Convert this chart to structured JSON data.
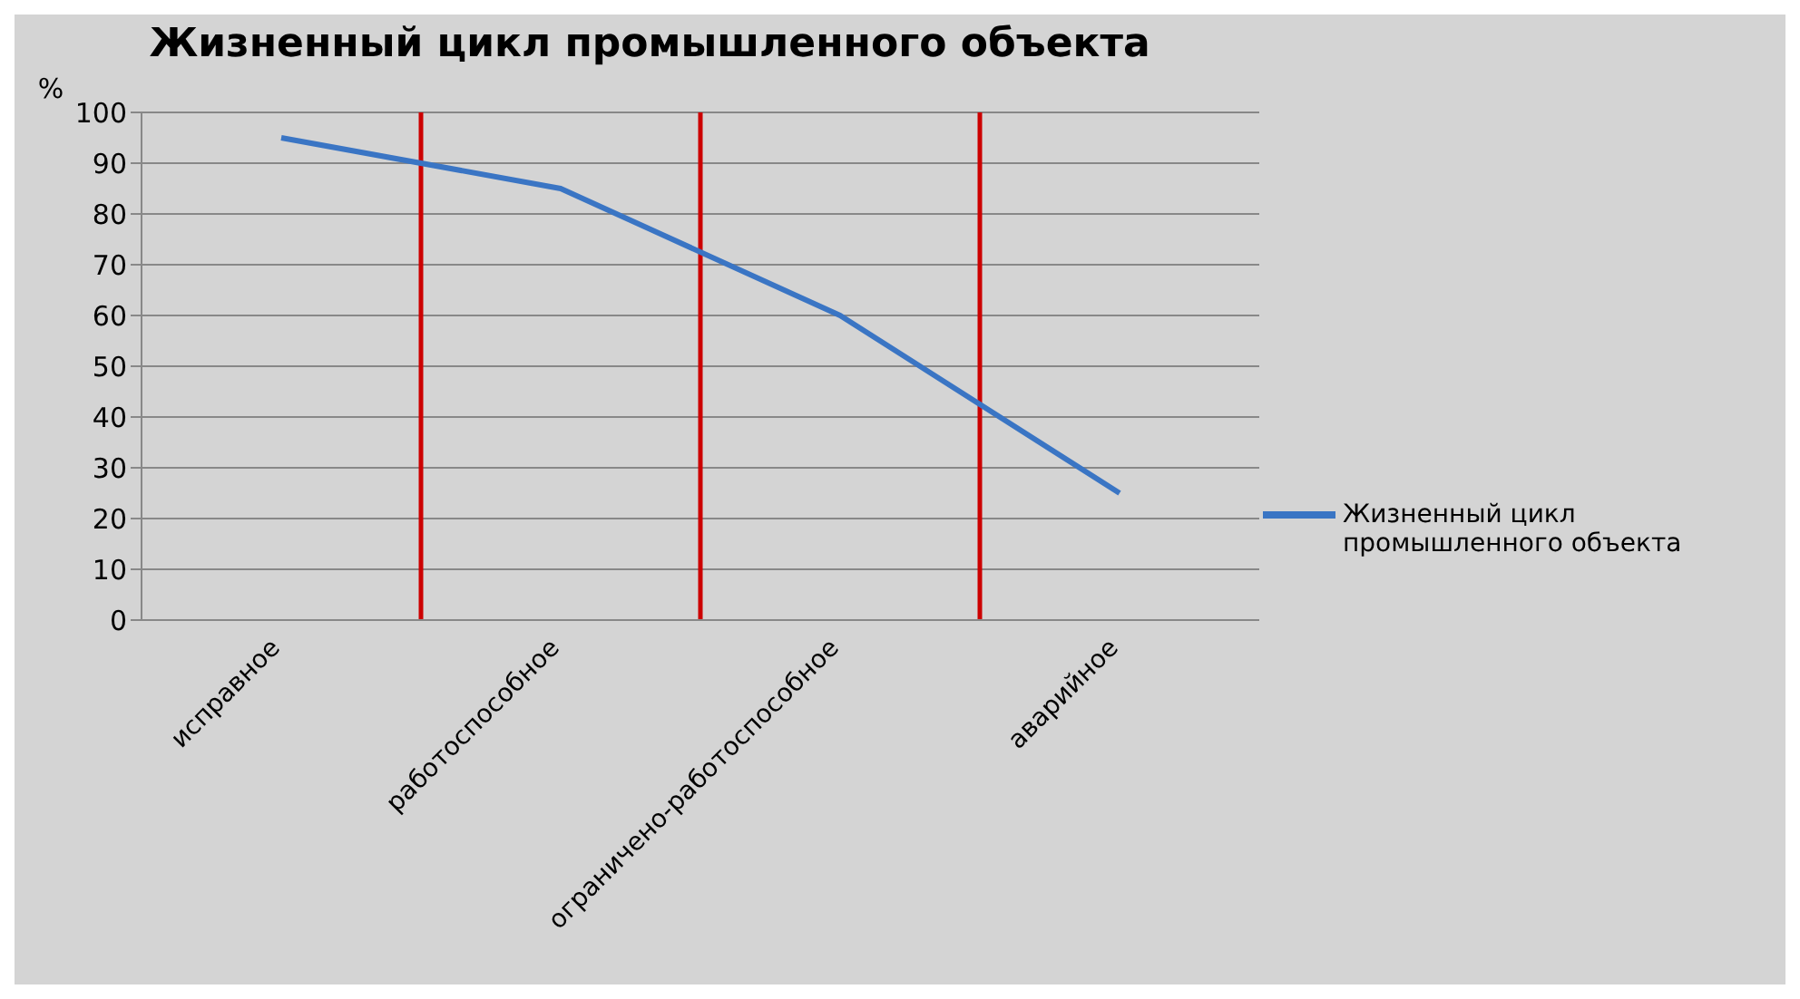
{
  "chart_data": {
    "type": "line",
    "title": "Жизненный цикл промышленного объекта",
    "ylabel": "%",
    "categories": [
      "исправное",
      "работоспособное",
      "ограничено-работоспособное",
      "аварийное"
    ],
    "ylim": [
      0,
      100
    ],
    "yticks": [
      0,
      10,
      20,
      30,
      40,
      50,
      60,
      70,
      80,
      90,
      100
    ],
    "series": [
      {
        "name": "Жизненный цикл промышленного объекта",
        "color": "#3a75c4",
        "values": [
          95,
          85,
          60,
          25
        ]
      }
    ],
    "grid": "y",
    "legend": "right",
    "marker": "none",
    "line_style": "solid"
  }
}
